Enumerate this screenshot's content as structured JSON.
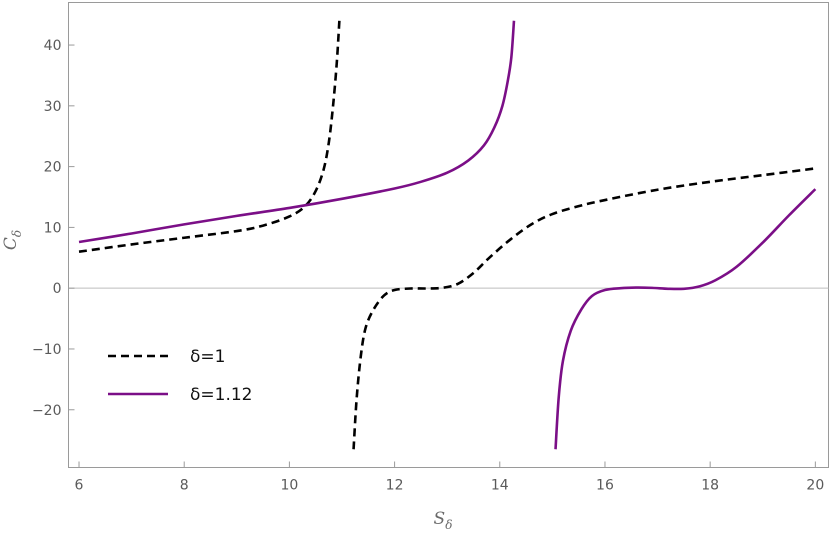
{
  "chart_data": {
    "type": "line",
    "xlabel": {
      "base": "S",
      "sub": "δ"
    },
    "ylabel": {
      "base": "C",
      "sub": "δ"
    },
    "xlim": [
      5.8,
      20.25
    ],
    "ylim": [
      -29.5,
      47
    ],
    "xticks": [
      6,
      8,
      10,
      12,
      14,
      16,
      18,
      20
    ],
    "yticks": [
      -20,
      -10,
      0,
      10,
      20,
      30,
      40
    ],
    "ytick_labels": [
      "−20",
      "−10",
      "0",
      "10",
      "20",
      "30",
      "40"
    ],
    "grid": false,
    "zero_line": true,
    "legend_position": "lower-left",
    "series": [
      {
        "name": "δ=1",
        "legend_label": "δ=1",
        "color": "#000000",
        "style": "dashed",
        "segments": [
          [
            [
              6.0,
              6.0
            ],
            [
              7.0,
              7.2
            ],
            [
              8.0,
              8.3
            ],
            [
              9.0,
              9.4
            ],
            [
              9.5,
              10.3
            ],
            [
              10.0,
              11.8
            ],
            [
              10.3,
              13.5
            ],
            [
              10.5,
              16.0
            ],
            [
              10.65,
              19.5
            ],
            [
              10.75,
              24.0
            ],
            [
              10.83,
              30.0
            ],
            [
              10.9,
              37.0
            ],
            [
              10.95,
              44.0
            ]
          ],
          [
            [
              11.22,
              -26.5
            ],
            [
              11.28,
              -18.0
            ],
            [
              11.36,
              -11.0
            ],
            [
              11.45,
              -6.5
            ],
            [
              11.6,
              -3.5
            ],
            [
              11.8,
              -1.2
            ],
            [
              12.0,
              -0.3
            ],
            [
              12.3,
              -0.05
            ],
            [
              12.6,
              -0.05
            ],
            [
              12.9,
              0.05
            ],
            [
              13.2,
              0.7
            ],
            [
              13.5,
              2.5
            ],
            [
              13.8,
              5.0
            ],
            [
              14.2,
              8.0
            ],
            [
              14.6,
              10.5
            ],
            [
              15.0,
              12.2
            ],
            [
              15.5,
              13.5
            ],
            [
              16.0,
              14.5
            ],
            [
              17.0,
              16.2
            ],
            [
              18.0,
              17.5
            ],
            [
              19.0,
              18.6
            ],
            [
              20.0,
              19.7
            ]
          ]
        ]
      },
      {
        "name": "δ=1.12",
        "legend_label": "δ=1.12",
        "color": "#7b0f87",
        "style": "solid",
        "segments": [
          [
            [
              6.0,
              7.6
            ],
            [
              7.0,
              9.0
            ],
            [
              8.0,
              10.5
            ],
            [
              9.0,
              11.9
            ],
            [
              10.0,
              13.2
            ],
            [
              11.0,
              14.7
            ],
            [
              12.0,
              16.4
            ],
            [
              12.5,
              17.5
            ],
            [
              13.0,
              19.0
            ],
            [
              13.4,
              21.0
            ],
            [
              13.7,
              23.5
            ],
            [
              13.9,
              26.5
            ],
            [
              14.05,
              30.0
            ],
            [
              14.15,
              34.0
            ],
            [
              14.22,
              38.0
            ],
            [
              14.27,
              44.0
            ]
          ],
          [
            [
              15.06,
              -26.5
            ],
            [
              15.12,
              -18.0
            ],
            [
              15.2,
              -12.0
            ],
            [
              15.35,
              -7.0
            ],
            [
              15.55,
              -3.5
            ],
            [
              15.75,
              -1.3
            ],
            [
              16.0,
              -0.3
            ],
            [
              16.3,
              0.0
            ],
            [
              16.6,
              0.1
            ],
            [
              16.9,
              0.05
            ],
            [
              17.2,
              -0.1
            ],
            [
              17.5,
              -0.1
            ],
            [
              17.8,
              0.3
            ],
            [
              18.1,
              1.3
            ],
            [
              18.5,
              3.5
            ],
            [
              19.0,
              7.5
            ],
            [
              19.5,
              12.0
            ],
            [
              20.0,
              16.3
            ]
          ]
        ]
      }
    ]
  }
}
